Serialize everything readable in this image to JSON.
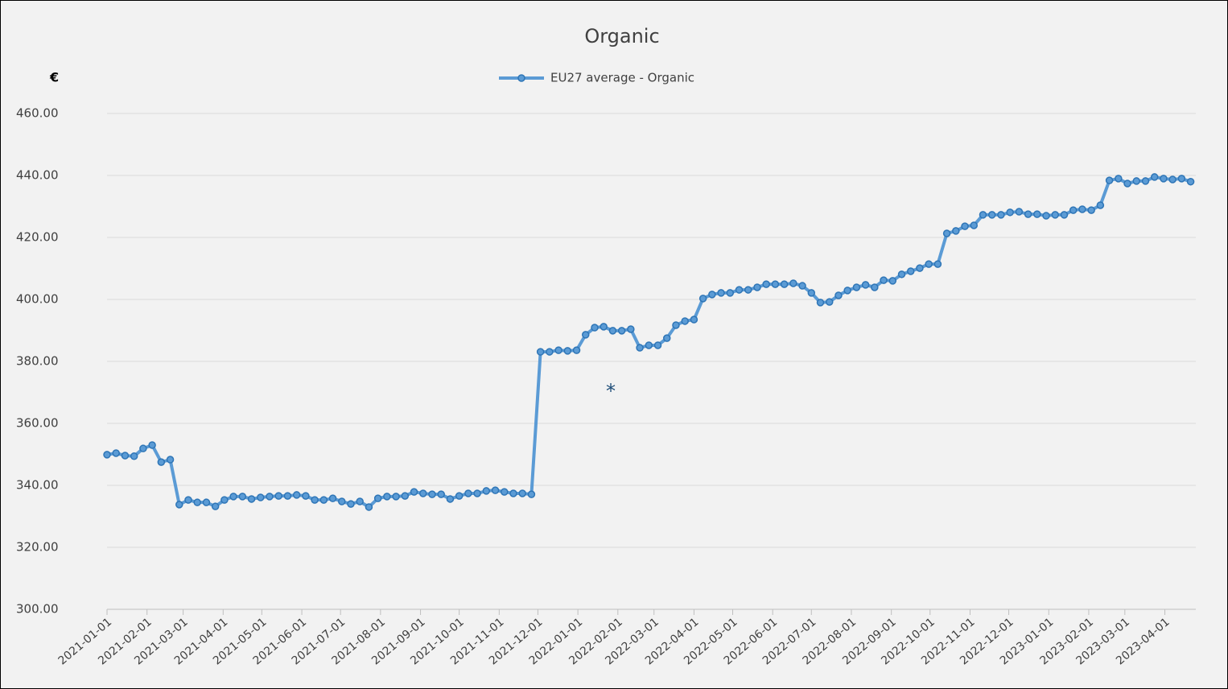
{
  "chart_data": {
    "type": "line",
    "title": "Organic",
    "y_label": "€",
    "annotation": "*",
    "x": [
      "2021-01-01",
      "2021-01-08",
      "2021-01-15",
      "2021-01-22",
      "2021-01-29",
      "2021-02-05",
      "2021-02-12",
      "2021-02-19",
      "2021-02-26",
      "2021-03-05",
      "2021-03-12",
      "2021-03-19",
      "2021-03-26",
      "2021-04-02",
      "2021-04-09",
      "2021-04-16",
      "2021-04-23",
      "2021-04-30",
      "2021-05-07",
      "2021-05-14",
      "2021-05-21",
      "2021-05-28",
      "2021-06-04",
      "2021-06-11",
      "2021-06-18",
      "2021-06-25",
      "2021-07-02",
      "2021-07-09",
      "2021-07-16",
      "2021-07-23",
      "2021-07-30",
      "2021-08-06",
      "2021-08-13",
      "2021-08-20",
      "2021-08-27",
      "2021-09-03",
      "2021-09-10",
      "2021-09-17",
      "2021-09-24",
      "2021-10-01",
      "2021-10-08",
      "2021-10-15",
      "2021-10-22",
      "2021-10-29",
      "2021-11-05",
      "2021-11-12",
      "2021-11-19",
      "2021-11-26",
      "2021-12-03",
      "2021-12-10",
      "2021-12-17",
      "2021-12-24",
      "2021-12-31",
      "2022-01-07",
      "2022-01-14",
      "2022-01-21",
      "2022-01-28",
      "2022-02-04",
      "2022-02-11",
      "2022-02-18",
      "2022-02-25",
      "2022-03-04",
      "2022-03-11",
      "2022-03-18",
      "2022-03-25",
      "2022-04-01",
      "2022-04-08",
      "2022-04-15",
      "2022-04-22",
      "2022-04-29",
      "2022-05-06",
      "2022-05-13",
      "2022-05-20",
      "2022-05-27",
      "2022-06-03",
      "2022-06-10",
      "2022-06-17",
      "2022-06-24",
      "2022-07-01",
      "2022-07-08",
      "2022-07-15",
      "2022-07-22",
      "2022-07-29",
      "2022-08-05",
      "2022-08-12",
      "2022-08-19",
      "2022-08-26",
      "2022-09-02",
      "2022-09-09",
      "2022-09-16",
      "2022-09-23",
      "2022-09-30",
      "2022-10-07",
      "2022-10-14",
      "2022-10-21",
      "2022-10-28",
      "2022-11-04",
      "2022-11-11",
      "2022-11-18",
      "2022-11-25",
      "2022-12-02",
      "2022-12-09",
      "2022-12-16",
      "2022-12-23",
      "2022-12-30",
      "2023-01-06",
      "2023-01-13",
      "2023-01-20",
      "2023-01-27",
      "2023-02-03",
      "2023-02-10",
      "2023-02-17",
      "2023-02-24",
      "2023-03-03",
      "2023-03-10",
      "2023-03-17",
      "2023-03-24",
      "2023-03-31",
      "2023-04-07",
      "2023-04-14",
      "2023-04-21"
    ],
    "series": [
      {
        "name": "EU27 average - Organic",
        "color": "#5b9bd5",
        "marker_edge": "#2e75b6",
        "values": [
          349.9,
          350.4,
          349.6,
          349.4,
          351.9,
          353.0,
          347.5,
          348.3,
          333.8,
          335.3,
          334.5,
          334.5,
          333.2,
          335.3,
          336.4,
          336.4,
          335.6,
          336.1,
          336.4,
          336.6,
          336.6,
          336.9,
          336.6,
          335.3,
          335.3,
          335.8,
          334.8,
          334.0,
          334.8,
          333.0,
          335.8,
          336.4,
          336.4,
          336.6,
          337.9,
          337.4,
          337.1,
          337.1,
          335.6,
          336.6,
          337.4,
          337.4,
          338.2,
          338.4,
          337.9,
          337.4,
          337.4,
          337.1,
          383.1,
          383.1,
          383.6,
          383.4,
          383.6,
          388.6,
          390.9,
          391.2,
          389.9,
          389.9,
          390.4,
          384.4,
          385.2,
          385.2,
          387.5,
          391.7,
          393.0,
          393.5,
          400.3,
          401.6,
          402.1,
          402.1,
          403.1,
          403.1,
          403.9,
          404.9,
          404.9,
          404.9,
          405.2,
          404.4,
          402.1,
          399.0,
          399.2,
          401.3,
          402.9,
          403.9,
          404.7,
          403.9,
          406.2,
          406.0,
          408.1,
          409.1,
          410.1,
          411.4,
          411.4,
          421.3,
          422.1,
          423.6,
          423.9,
          427.3,
          427.3,
          427.3,
          428.1,
          428.3,
          427.5,
          427.5,
          427.0,
          427.3,
          427.3,
          428.8,
          429.1,
          428.8,
          430.4,
          438.4,
          439.0,
          437.4,
          438.2,
          438.2,
          439.5,
          439.0,
          438.7,
          439.0,
          438.0
        ]
      }
    ],
    "xlim": [
      "2021-01-01",
      "2023-04-25"
    ],
    "xticks": [
      "2021-01-01",
      "2021-02-01",
      "2021-03-01",
      "2021-04-01",
      "2021-05-01",
      "2021-06-01",
      "2021-07-01",
      "2021-08-01",
      "2021-09-01",
      "2021-10-01",
      "2021-11-01",
      "2021-12-01",
      "2022-01-01",
      "2022-02-01",
      "2022-03-01",
      "2022-04-01",
      "2022-05-01",
      "2022-06-01",
      "2022-07-01",
      "2022-08-01",
      "2022-09-01",
      "2022-10-01",
      "2022-11-01",
      "2022-12-01",
      "2023-01-01",
      "2023-02-01",
      "2023-03-01",
      "2023-04-01"
    ],
    "ylim": [
      300,
      460
    ],
    "yticks": [
      {
        "value": 300,
        "label": "300.00"
      },
      {
        "value": 320,
        "label": "320.00"
      },
      {
        "value": 340,
        "label": "340.00"
      },
      {
        "value": 360,
        "label": "360.00"
      },
      {
        "value": 380,
        "label": "380.00"
      },
      {
        "value": 400,
        "label": "400.00"
      },
      {
        "value": 420,
        "label": "420.00"
      },
      {
        "value": 440,
        "label": "440.00"
      },
      {
        "value": 460,
        "label": "460.00"
      }
    ],
    "grid": true,
    "legend": "top"
  }
}
